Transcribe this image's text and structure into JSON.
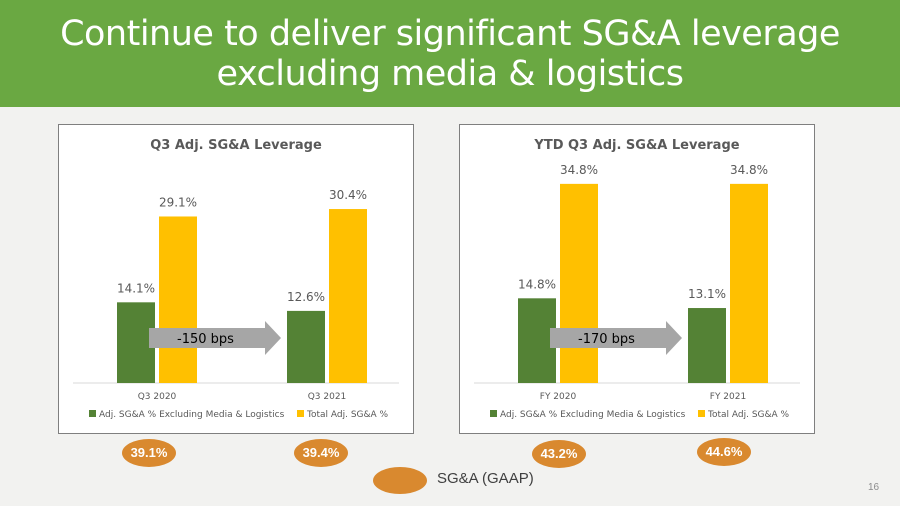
{
  "title": "Continue to deliver significant SG&A leverage excluding media & logistics",
  "colors": {
    "green": "#548235",
    "yellow": "#ffc000",
    "orange": "#d9892f",
    "header": "#6aa842",
    "arrow": "#a6a6a6"
  },
  "chart_data": [
    {
      "type": "bar",
      "title": "Q3 Adj. SG&A Leverage",
      "categories": [
        "Q3 2020",
        "Q3 2021"
      ],
      "series": [
        {
          "name": "Adj. SG&A % Excluding Media & Logistics",
          "values": [
            14.1,
            12.6
          ],
          "labels": [
            "14.1%",
            "12.6%"
          ]
        },
        {
          "name": "Total Adj. SG&A %",
          "values": [
            29.1,
            30.4
          ],
          "labels": [
            "29.1%",
            "30.4%"
          ]
        }
      ],
      "ylim": [
        0,
        36
      ],
      "grid": false,
      "legend_position": "bottom",
      "annotation": "-150 bps",
      "gaap_badges": [
        "39.1%",
        "39.4%"
      ]
    },
    {
      "type": "bar",
      "title": "YTD Q3 Adj. SG&A Leverage",
      "categories": [
        "FY 2020",
        "FY 2021"
      ],
      "series": [
        {
          "name": "Adj. SG&A % Excluding Media & Logistics",
          "values": [
            14.8,
            13.1
          ],
          "labels": [
            "14.8%",
            "13.1%"
          ]
        },
        {
          "name": "Total Adj. SG&A %",
          "values": [
            34.8,
            34.8
          ],
          "labels": [
            "34.8%",
            "34.8%"
          ]
        }
      ],
      "ylim": [
        0,
        36
      ],
      "grid": false,
      "legend_position": "bottom",
      "annotation": "-170 bps",
      "gaap_badges": [
        "43.2%",
        "44.6%"
      ]
    }
  ],
  "gaap_legend": "SG&A (GAAP)",
  "page_number": "16"
}
